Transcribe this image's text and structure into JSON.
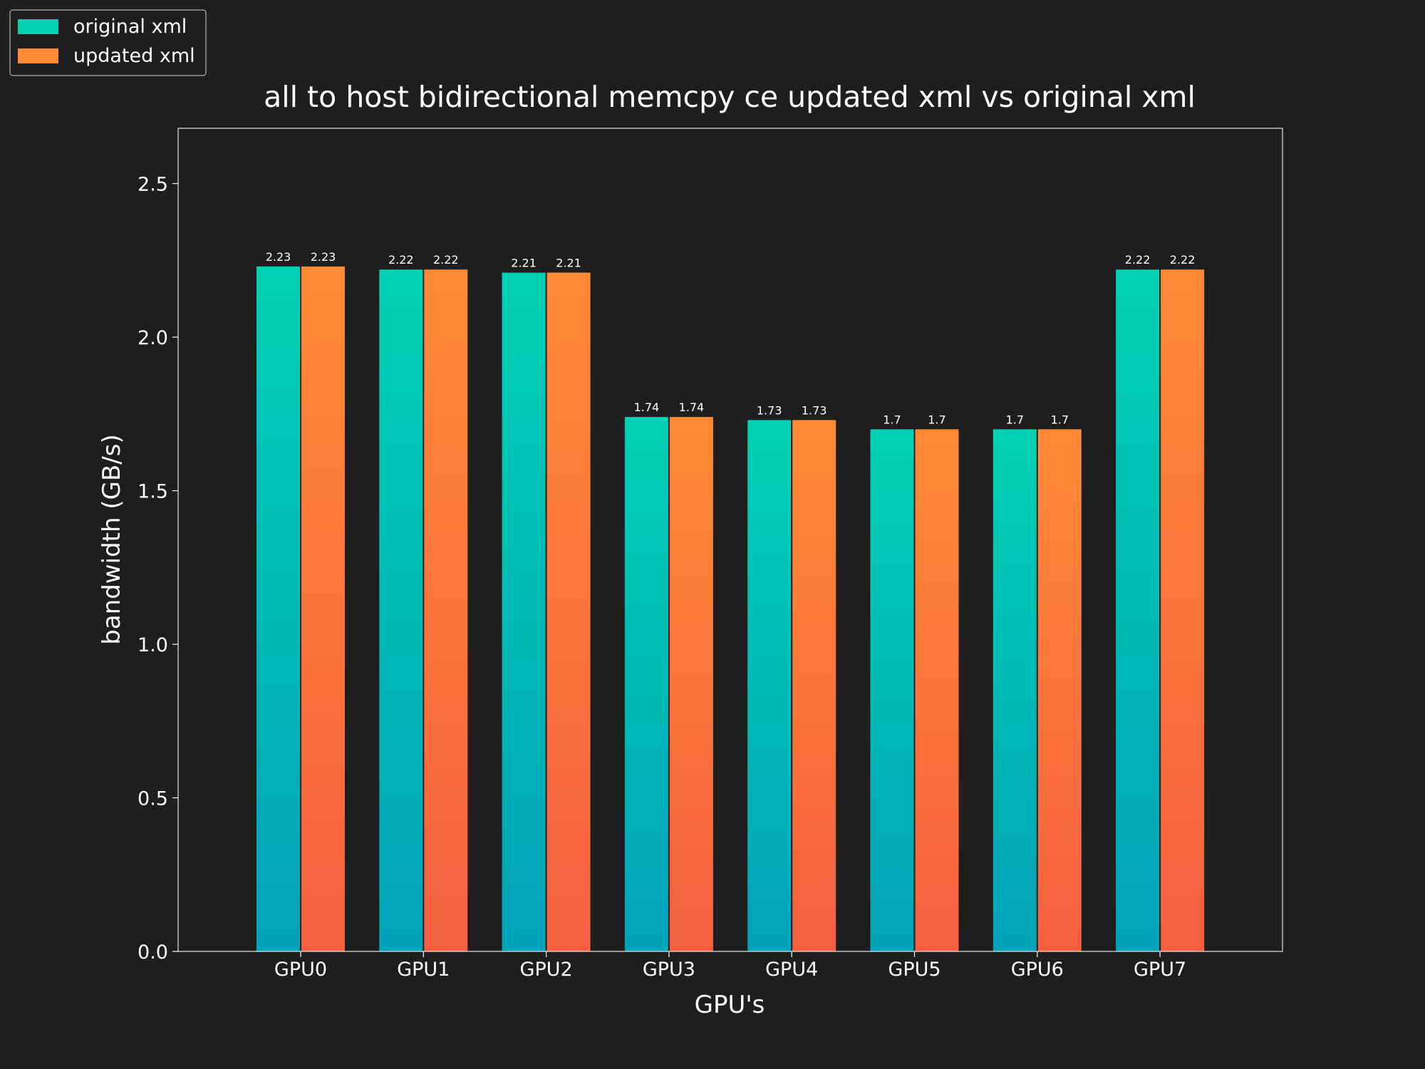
{
  "chart_data": {
    "type": "bar",
    "title": "all to host bidirectional memcpy ce updated xml vs original xml",
    "xlabel": "GPU's",
    "ylabel": "bandwidth (GB/s)",
    "categories": [
      "GPU0",
      "GPU1",
      "GPU2",
      "GPU3",
      "GPU4",
      "GPU5",
      "GPU6",
      "GPU7"
    ],
    "series": [
      {
        "name": "original xml",
        "values": [
          2.23,
          2.22,
          2.21,
          1.74,
          1.73,
          1.7,
          1.7,
          2.22
        ],
        "labels": [
          "2.23",
          "2.22",
          "2.21",
          "1.74",
          "1.73",
          "1.7",
          "1.7",
          "2.22"
        ],
        "color_top": "#00d1b4",
        "color_bottom": "#00a3b8"
      },
      {
        "name": "updated xml",
        "values": [
          2.23,
          2.22,
          2.21,
          1.74,
          1.73,
          1.7,
          1.7,
          2.22
        ],
        "labels": [
          "2.23",
          "2.22",
          "2.21",
          "1.74",
          "1.73",
          "1.7",
          "1.7",
          "2.22"
        ],
        "color_top": "#ff8a36",
        "color_bottom": "#f55f40"
      }
    ],
    "ylim": [
      0,
      2.68
    ],
    "yticks": [
      0.0,
      0.5,
      1.0,
      1.5,
      2.0,
      2.5
    ],
    "ytick_labels": [
      "0.0",
      "0.5",
      "1.0",
      "1.5",
      "2.0",
      "2.5"
    ],
    "grid": false,
    "legend_position": "top-left (outside plot)",
    "background_color": "#1e1e1e",
    "text_color": "#ffffff"
  }
}
